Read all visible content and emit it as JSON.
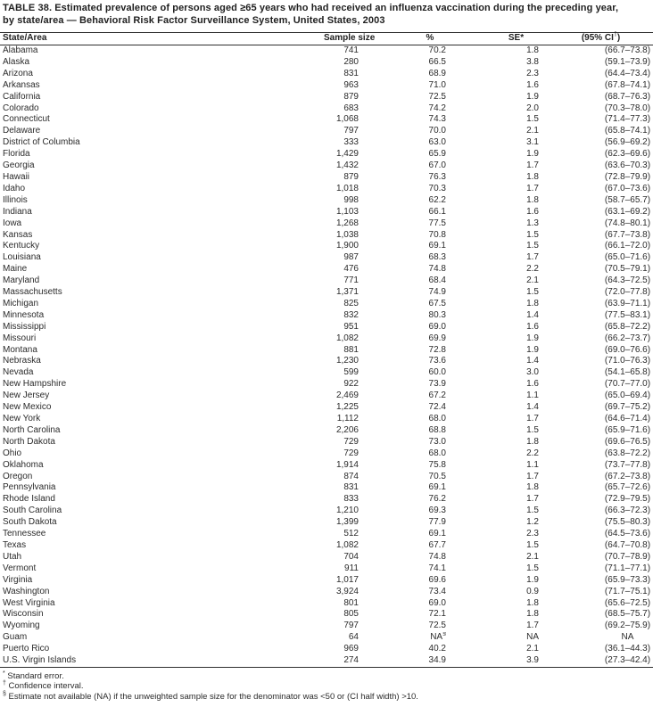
{
  "title": {
    "line1": "TABLE 38. Estimated prevalence of persons aged ≥65 years who had received an influenza vaccination during the preceding year,",
    "line2": "by state/area — Behavioral Risk Factor Surveillance System, United States, 2003"
  },
  "table": {
    "headers": {
      "state": "State/Area",
      "sample": "Sample size",
      "pct": "%",
      "se": "SE*",
      "ci_prefix": "(95% CI",
      "ci_sup": "†",
      "ci_suffix": ")"
    },
    "rows": [
      [
        "Alabama",
        "741",
        "70.2",
        "1.8",
        "(66.7–73.8)"
      ],
      [
        "Alaska",
        "280",
        "66.5",
        "3.8",
        "(59.1–73.9)"
      ],
      [
        "Arizona",
        "831",
        "68.9",
        "2.3",
        "(64.4–73.4)"
      ],
      [
        "Arkansas",
        "963",
        "71.0",
        "1.6",
        "(67.8–74.1)"
      ],
      [
        "California",
        "879",
        "72.5",
        "1.9",
        "(68.7–76.3)"
      ],
      [
        "Colorado",
        "683",
        "74.2",
        "2.0",
        "(70.3–78.0)"
      ],
      [
        "Connecticut",
        "1,068",
        "74.3",
        "1.5",
        "(71.4–77.3)"
      ],
      [
        "Delaware",
        "797",
        "70.0",
        "2.1",
        "(65.8–74.1)"
      ],
      [
        "District of Columbia",
        "333",
        "63.0",
        "3.1",
        "(56.9–69.2)"
      ],
      [
        "Florida",
        "1,429",
        "65.9",
        "1.9",
        "(62.3–69.6)"
      ],
      [
        "Georgia",
        "1,432",
        "67.0",
        "1.7",
        "(63.6–70.3)"
      ],
      [
        "Hawaii",
        "879",
        "76.3",
        "1.8",
        "(72.8–79.9)"
      ],
      [
        "Idaho",
        "1,018",
        "70.3",
        "1.7",
        "(67.0–73.6)"
      ],
      [
        "Illinois",
        "998",
        "62.2",
        "1.8",
        "(58.7–65.7)"
      ],
      [
        "Indiana",
        "1,103",
        "66.1",
        "1.6",
        "(63.1–69.2)"
      ],
      [
        "Iowa",
        "1,268",
        "77.5",
        "1.3",
        "(74.8–80.1)"
      ],
      [
        "Kansas",
        "1,038",
        "70.8",
        "1.5",
        "(67.7–73.8)"
      ],
      [
        "Kentucky",
        "1,900",
        "69.1",
        "1.5",
        "(66.1–72.0)"
      ],
      [
        "Louisiana",
        "987",
        "68.3",
        "1.7",
        "(65.0–71.6)"
      ],
      [
        "Maine",
        "476",
        "74.8",
        "2.2",
        "(70.5–79.1)"
      ],
      [
        "Maryland",
        "771",
        "68.4",
        "2.1",
        "(64.3–72.5)"
      ],
      [
        "Massachusetts",
        "1,371",
        "74.9",
        "1.5",
        "(72.0–77.8)"
      ],
      [
        "Michigan",
        "825",
        "67.5",
        "1.8",
        "(63.9–71.1)"
      ],
      [
        "Minnesota",
        "832",
        "80.3",
        "1.4",
        "(77.5–83.1)"
      ],
      [
        "Mississippi",
        "951",
        "69.0",
        "1.6",
        "(65.8–72.2)"
      ],
      [
        "Missouri",
        "1,082",
        "69.9",
        "1.9",
        "(66.2–73.7)"
      ],
      [
        "Montana",
        "881",
        "72.8",
        "1.9",
        "(69.0–76.6)"
      ],
      [
        "Nebraska",
        "1,230",
        "73.6",
        "1.4",
        "(71.0–76.3)"
      ],
      [
        "Nevada",
        "599",
        "60.0",
        "3.0",
        "(54.1–65.8)"
      ],
      [
        "New Hampshire",
        "922",
        "73.9",
        "1.6",
        "(70.7–77.0)"
      ],
      [
        "New Jersey",
        "2,469",
        "67.2",
        "1.1",
        "(65.0–69.4)"
      ],
      [
        "New Mexico",
        "1,225",
        "72.4",
        "1.4",
        "(69.7–75.2)"
      ],
      [
        "New York",
        "1,112",
        "68.0",
        "1.7",
        "(64.6–71.4)"
      ],
      [
        "North Carolina",
        "2,206",
        "68.8",
        "1.5",
        "(65.9–71.6)"
      ],
      [
        "North Dakota",
        "729",
        "73.0",
        "1.8",
        "(69.6–76.5)"
      ],
      [
        "Ohio",
        "729",
        "68.0",
        "2.2",
        "(63.8–72.2)"
      ],
      [
        "Oklahoma",
        "1,914",
        "75.8",
        "1.1",
        "(73.7–77.8)"
      ],
      [
        "Oregon",
        "874",
        "70.5",
        "1.7",
        "(67.2–73.8)"
      ],
      [
        "Pennsylvania",
        "831",
        "69.1",
        "1.8",
        "(65.7–72.6)"
      ],
      [
        "Rhode Island",
        "833",
        "76.2",
        "1.7",
        "(72.9–79.5)"
      ],
      [
        "South Carolina",
        "1,210",
        "69.3",
        "1.5",
        "(66.3–72.3)"
      ],
      [
        "South Dakota",
        "1,399",
        "77.9",
        "1.2",
        "(75.5–80.3)"
      ],
      [
        "Tennessee",
        "512",
        "69.1",
        "2.3",
        "(64.5–73.6)"
      ],
      [
        "Texas",
        "1,082",
        "67.7",
        "1.5",
        "(64.7–70.8)"
      ],
      [
        "Utah",
        "704",
        "74.8",
        "2.1",
        "(70.7–78.9)"
      ],
      [
        "Vermont",
        "911",
        "74.1",
        "1.5",
        "(71.1–77.1)"
      ],
      [
        "Virginia",
        "1,017",
        "69.6",
        "1.9",
        "(65.9–73.3)"
      ],
      [
        "Washington",
        "3,924",
        "73.4",
        "0.9",
        "(71.7–75.1)"
      ],
      [
        "West Virginia",
        "801",
        "69.0",
        "1.8",
        "(65.6–72.5)"
      ],
      [
        "Wisconsin",
        "805",
        "72.1",
        "1.8",
        "(68.5–75.7)"
      ],
      [
        "Wyoming",
        "797",
        "72.5",
        "1.7",
        "(69.2–75.9)"
      ],
      [
        "Guam",
        "64",
        "NA§",
        "NA",
        "NA"
      ],
      [
        "Puerto Rico",
        "969",
        "40.2",
        "2.1",
        "(36.1–44.3)"
      ],
      [
        "U.S. Virgin Islands",
        "274",
        "34.9",
        "3.9",
        "(27.3–42.4)"
      ]
    ]
  },
  "footnotes": [
    {
      "marker": "*",
      "text": "Standard error."
    },
    {
      "marker": "†",
      "text": "Confidence interval."
    },
    {
      "marker": "§",
      "text": "Estimate not available (NA) if the unweighted sample size for the denominator was <50 or (CI half width) >10."
    }
  ]
}
